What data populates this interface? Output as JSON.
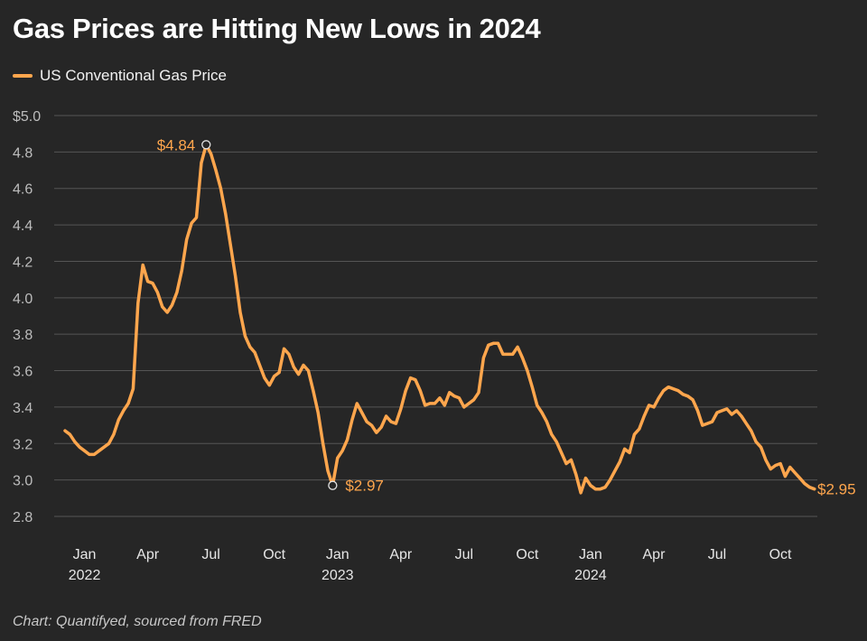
{
  "chart_data": {
    "type": "line",
    "title": "Gas Prices are Hitting New Lows in 2024",
    "xlabel": "",
    "ylabel": "",
    "ylim": [
      2.8,
      5.0
    ],
    "y_ticks": [
      {
        "value": 5.0,
        "label": "$5.0"
      },
      {
        "value": 4.8,
        "label": "4.8"
      },
      {
        "value": 4.6,
        "label": "4.6"
      },
      {
        "value": 4.4,
        "label": "4.4"
      },
      {
        "value": 4.2,
        "label": "4.2"
      },
      {
        "value": 4.0,
        "label": "4.0"
      },
      {
        "value": 3.8,
        "label": "3.8"
      },
      {
        "value": 3.6,
        "label": "3.6"
      },
      {
        "value": 3.4,
        "label": "3.4"
      },
      {
        "value": 3.2,
        "label": "3.2"
      },
      {
        "value": 3.0,
        "label": "3.0"
      },
      {
        "value": 2.8,
        "label": "2.8"
      }
    ],
    "x_ticks": [
      {
        "week": 4,
        "label": "Jan",
        "year": "2022"
      },
      {
        "week": 17,
        "label": "Apr",
        "year": ""
      },
      {
        "week": 30,
        "label": "Jul",
        "year": ""
      },
      {
        "week": 43,
        "label": "Oct",
        "year": ""
      },
      {
        "week": 56,
        "label": "Jan",
        "year": "2023"
      },
      {
        "week": 69,
        "label": "Apr",
        "year": ""
      },
      {
        "week": 82,
        "label": "Jul",
        "year": ""
      },
      {
        "week": 95,
        "label": "Oct",
        "year": ""
      },
      {
        "week": 108,
        "label": "Jan",
        "year": "2024"
      },
      {
        "week": 121,
        "label": "Apr",
        "year": ""
      },
      {
        "week": 134,
        "label": "Jul",
        "year": ""
      },
      {
        "week": 147,
        "label": "Oct",
        "year": ""
      }
    ],
    "series": [
      {
        "name": "US Conventional Gas Price",
        "color": "#ffa64d",
        "start_week": 0,
        "values": [
          3.27,
          3.25,
          3.21,
          3.18,
          3.16,
          3.14,
          3.14,
          3.16,
          3.18,
          3.2,
          3.25,
          3.33,
          3.38,
          3.42,
          3.5,
          3.97,
          4.18,
          4.09,
          4.08,
          4.03,
          3.95,
          3.92,
          3.96,
          4.03,
          4.15,
          4.32,
          4.41,
          4.44,
          4.74,
          4.84,
          4.79,
          4.7,
          4.6,
          4.46,
          4.29,
          4.12,
          3.92,
          3.79,
          3.73,
          3.7,
          3.63,
          3.56,
          3.52,
          3.57,
          3.59,
          3.72,
          3.69,
          3.62,
          3.58,
          3.63,
          3.6,
          3.49,
          3.37,
          3.2,
          3.05,
          2.97,
          3.12,
          3.16,
          3.22,
          3.33,
          3.42,
          3.37,
          3.32,
          3.3,
          3.26,
          3.29,
          3.35,
          3.32,
          3.31,
          3.39,
          3.49,
          3.56,
          3.55,
          3.49,
          3.41,
          3.42,
          3.42,
          3.45,
          3.41,
          3.48,
          3.46,
          3.45,
          3.4,
          3.42,
          3.44,
          3.48,
          3.67,
          3.74,
          3.75,
          3.75,
          3.69,
          3.69,
          3.69,
          3.73,
          3.67,
          3.6,
          3.51,
          3.41,
          3.37,
          3.32,
          3.25,
          3.21,
          3.15,
          3.09,
          3.11,
          3.03,
          2.93,
          3.01,
          2.97,
          2.95,
          2.95,
          2.96,
          3.0,
          3.05,
          3.1,
          3.17,
          3.15,
          3.25,
          3.28,
          3.35,
          3.41,
          3.4,
          3.45,
          3.49,
          3.51,
          3.5,
          3.49,
          3.47,
          3.46,
          3.44,
          3.38,
          3.3,
          3.31,
          3.32,
          3.37,
          3.38,
          3.39,
          3.36,
          3.38,
          3.35,
          3.31,
          3.27,
          3.21,
          3.18,
          3.11,
          3.06,
          3.08,
          3.09,
          3.02,
          3.07,
          3.04,
          3.01,
          2.98,
          2.96,
          2.95
        ]
      }
    ],
    "annotations": [
      {
        "week": 29,
        "value": 4.84,
        "label": "$4.84",
        "marker": true,
        "position": "left"
      },
      {
        "week": 55,
        "value": 2.97,
        "label": "$2.97",
        "marker": true,
        "position": "right"
      },
      {
        "week": 152,
        "value": 2.95,
        "label": "$2.95",
        "marker": false,
        "position": "right"
      }
    ],
    "legend": {
      "label": "US Conventional Gas Price",
      "placement": "top-left"
    },
    "grid": true
  },
  "source_note": "Chart: Quantifyed, sourced from FRED"
}
